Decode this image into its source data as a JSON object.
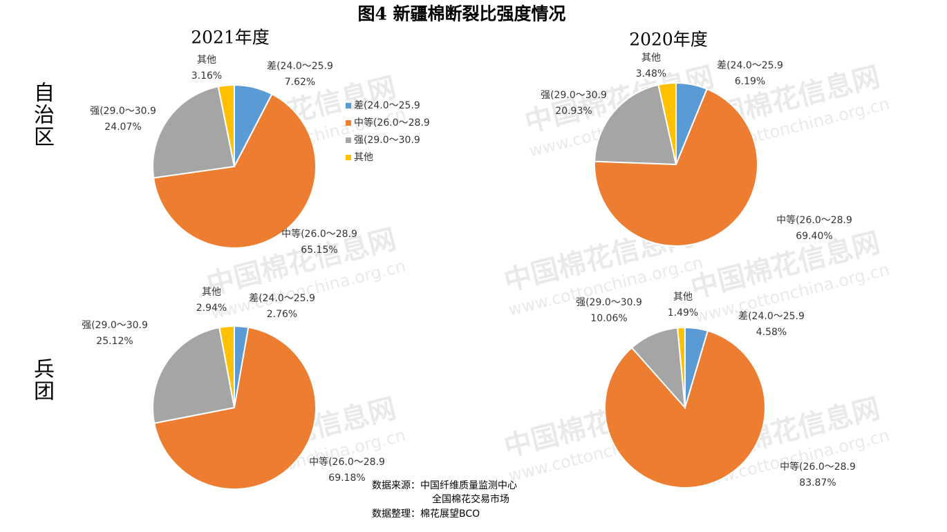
{
  "title": "图4 新疆棉断裂比强度情况",
  "column_labels": [
    "2021年度",
    "2020年度"
  ],
  "row_labels": [
    "自治区",
    "兵团"
  ],
  "source": [
    "数据来源：中国纤维质量监测中心",
    "全国棉花交易市场",
    "数据整理：棉花展望BCO"
  ],
  "watermark": [
    "中国棉花信息网",
    "www.cottonchina.org.cn"
  ],
  "chart_data": [
    {
      "type": "pie",
      "categories": [
        "差(24.0～25.9",
        "中等(26.0～28.9",
        "强(29.0～30.9",
        "其他"
      ],
      "values": [
        7.62,
        65.15,
        24.07,
        3.16
      ],
      "value_labels": [
        "7.62%",
        "65.15%",
        "24.07%",
        "3.16%"
      ],
      "colors": [
        "#5b9bd5",
        "#ed7d31",
        "#a5a5a5",
        "#ffc000"
      ],
      "legend": "right"
    },
    {
      "type": "pie",
      "categories": [
        "差(24.0～25.9",
        "中等(26.0～28.9",
        "强(29.0～30.9",
        "其他"
      ],
      "values": [
        6.19,
        69.4,
        20.93,
        3.48
      ],
      "value_labels": [
        "6.19%",
        "69.40%",
        "20.93%",
        "3.48%"
      ],
      "colors": [
        "#5b9bd5",
        "#ed7d31",
        "#a5a5a5",
        "#ffc000"
      ]
    },
    {
      "type": "pie",
      "categories": [
        "差(24.0～25.9",
        "中等(26.0～28.9",
        "强(29.0～30.9",
        "其他"
      ],
      "values": [
        2.76,
        69.18,
        25.12,
        2.94
      ],
      "value_labels": [
        "2.76%",
        "69.18%",
        "25.12%",
        "2.94%"
      ],
      "colors": [
        "#5b9bd5",
        "#ed7d31",
        "#a5a5a5",
        "#ffc000"
      ]
    },
    {
      "type": "pie",
      "categories": [
        "差(24.0～25.9",
        "中等(26.0～28.9",
        "强(29.0～30.9",
        "其他"
      ],
      "values": [
        4.58,
        83.87,
        10.06,
        1.49
      ],
      "value_labels": [
        "4.58%",
        "83.87%",
        "10.06%",
        "1.49%"
      ],
      "colors": [
        "#5b9bd5",
        "#ed7d31",
        "#a5a5a5",
        "#ffc000"
      ]
    }
  ]
}
